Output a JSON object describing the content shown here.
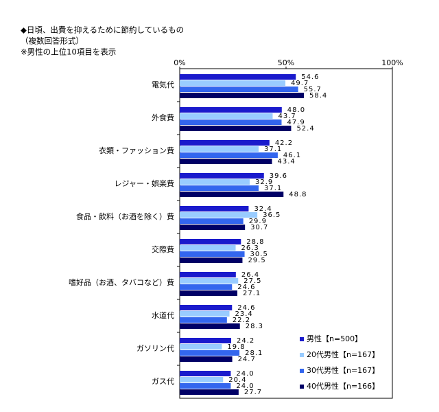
{
  "chart_data": {
    "type": "hbar",
    "title_lines": [
      "◆日頃、出費を抑えるために節約しているもの",
      "（複数回答形式）",
      "※男性の上位10項目を表示"
    ],
    "categories": [
      "電気代",
      "外食費",
      "衣類・ファッション費",
      "レジャー・娯楽費",
      "食品・飲料（お酒を除く）費",
      "交際費",
      "嗜好品（お酒、タバコなど）費",
      "水道代",
      "ガソリン代",
      "ガス代"
    ],
    "series": [
      {
        "name": "男性【n=500】",
        "color": "#1a1acc",
        "values": [
          54.6,
          48.0,
          42.2,
          39.6,
          32.4,
          28.8,
          26.4,
          24.6,
          24.2,
          24.0
        ],
        "value_labels": [
          "54.6",
          "48.0",
          "42.2",
          "39.6",
          "32.4",
          "28.8",
          "26.4",
          "24.6",
          "24.2",
          "24.0"
        ]
      },
      {
        "name": "20代男性【n=167】",
        "color": "#99ccff",
        "values": [
          49.7,
          43.7,
          37.1,
          32.9,
          36.5,
          26.3,
          27.5,
          23.4,
          19.8,
          20.4
        ],
        "value_labels": [
          "49.7",
          "43.7",
          "37.1",
          "32.9",
          "36.5",
          "26.3",
          "27.5",
          "23.4",
          "19.8",
          "20.4"
        ]
      },
      {
        "name": "30代男性【n=167】",
        "color": "#3366ee",
        "values": [
          55.7,
          47.9,
          46.1,
          37.1,
          29.9,
          30.5,
          24.6,
          22.2,
          28.1,
          24.0
        ],
        "value_labels": [
          "55.7",
          "47.9",
          "46.1",
          "37.1",
          "29.9",
          "30.5",
          "24.6",
          "22.2",
          "28.1",
          "24.0"
        ]
      },
      {
        "name": "40代男性【n=166】",
        "color": "#000066",
        "values": [
          58.4,
          52.4,
          43.4,
          48.8,
          30.7,
          29.5,
          27.1,
          28.3,
          24.7,
          27.7
        ],
        "value_labels": [
          "58.4",
          "52.4",
          "43.4",
          "48.8",
          "30.7",
          "29.5",
          "27.1",
          "28.3",
          "24.7",
          "27.7"
        ]
      }
    ],
    "xlim": [
      0,
      100
    ],
    "xticks": [
      {
        "value": 0,
        "label": "0%"
      },
      {
        "value": 50,
        "label": "50%"
      },
      {
        "value": 100,
        "label": "100%"
      }
    ],
    "legend": "bottom-right"
  }
}
